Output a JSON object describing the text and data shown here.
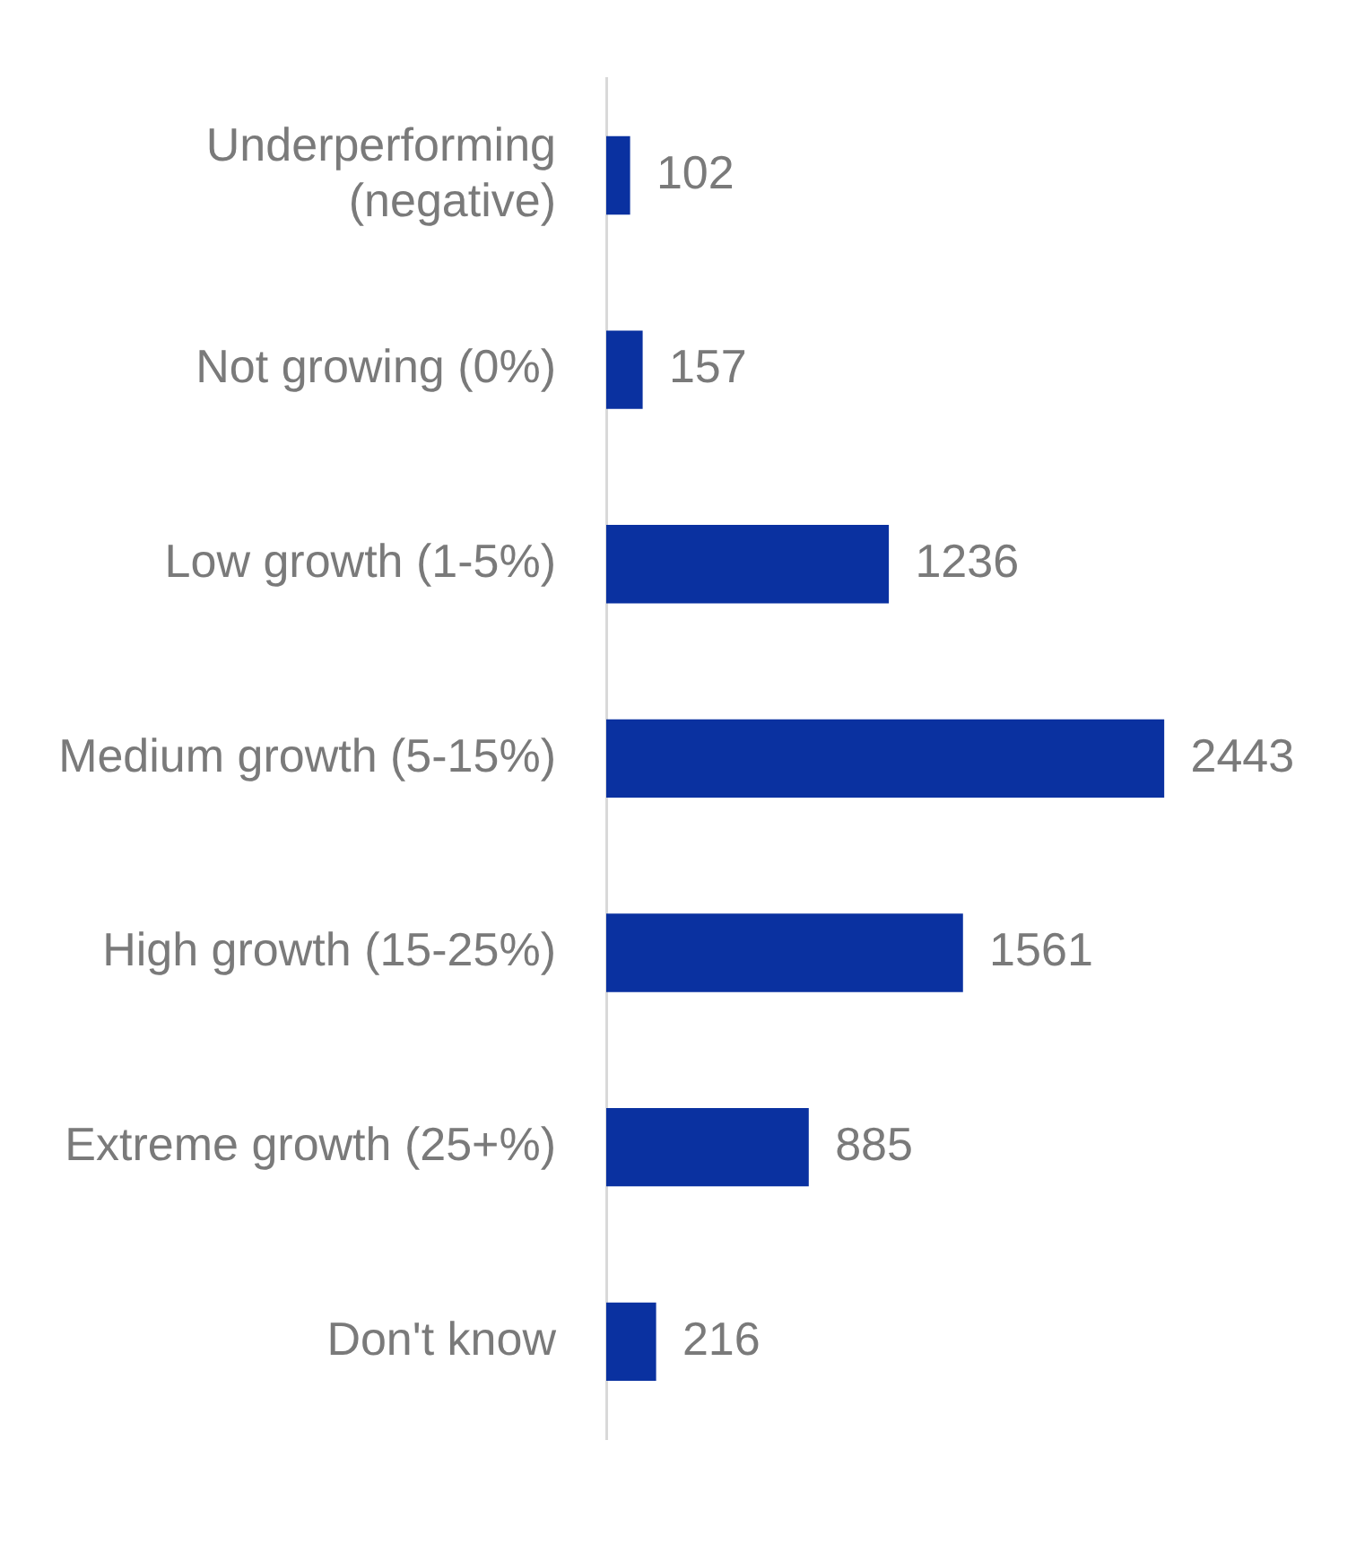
{
  "chart_data": {
    "type": "bar",
    "orientation": "horizontal",
    "categories": [
      "Underperforming\n(negative)",
      "Not growing (0%)",
      "Low growth (1-5%)",
      "Medium growth (5-15%)",
      "High growth (15-25%)",
      "Extreme growth (25+%)",
      "Don't know"
    ],
    "values": [
      102,
      157,
      1236,
      2443,
      1561,
      885,
      216
    ],
    "color": "#0a31a0",
    "data_labels": true,
    "grid": false,
    "legend": false
  }
}
